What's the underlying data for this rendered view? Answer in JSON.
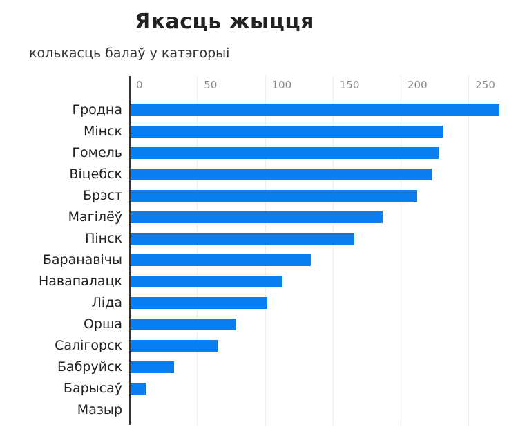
{
  "chart_data": {
    "type": "bar",
    "orientation": "horizontal",
    "title": "Якасць жыцця",
    "subtitle": "колькасць балаў у катэгорыі",
    "xlabel": "",
    "ylabel": "",
    "xlim": [
      0,
      275
    ],
    "ticks": [
      0,
      50,
      100,
      150,
      200,
      250
    ],
    "grid": true,
    "bar_color": "#0a7ef0",
    "categories": [
      "Гродна",
      "Мінск",
      "Гомель",
      "Віцебск",
      "Брэст",
      "Магілёў",
      "Пінск",
      "Баранавічы",
      "Навапалацк",
      "Ліда",
      "Орша",
      "Салігорск",
      "Бабруйск",
      "Барысаў",
      "Мазыр"
    ],
    "values": [
      273,
      231,
      228,
      223,
      212,
      187,
      166,
      134,
      113,
      102,
      79,
      65,
      33,
      12,
      0
    ]
  }
}
